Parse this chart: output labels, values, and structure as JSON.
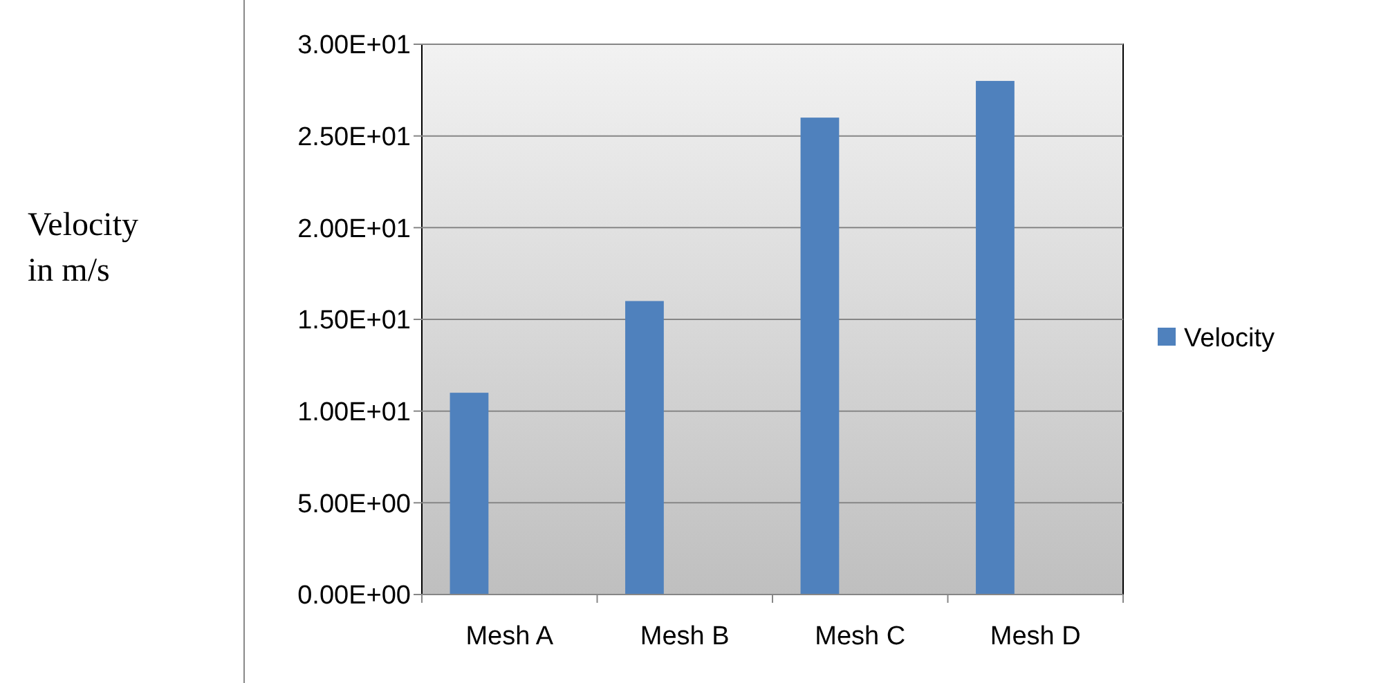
{
  "chart_data": {
    "type": "bar",
    "ylabel": "Velocity in m/s",
    "categories": [
      "Mesh A",
      "Mesh B",
      "Mesh C",
      "Mesh D"
    ],
    "series": [
      {
        "name": "Velocity",
        "color": "#4f81bd",
        "values": [
          11,
          16,
          26,
          28
        ]
      }
    ],
    "ylim": [
      0,
      30
    ],
    "yticks": [
      {
        "value": 0,
        "label": "0.00E+00"
      },
      {
        "value": 5,
        "label": "5.00E+00"
      },
      {
        "value": 10,
        "label": "1.00E+01"
      },
      {
        "value": 15,
        "label": "1.50E+01"
      },
      {
        "value": 20,
        "label": "2.00E+01"
      },
      {
        "value": 25,
        "label": "2.50E+01"
      },
      {
        "value": 30,
        "label": "3.00E+01"
      }
    ],
    "grid": "y",
    "legend": "right"
  }
}
